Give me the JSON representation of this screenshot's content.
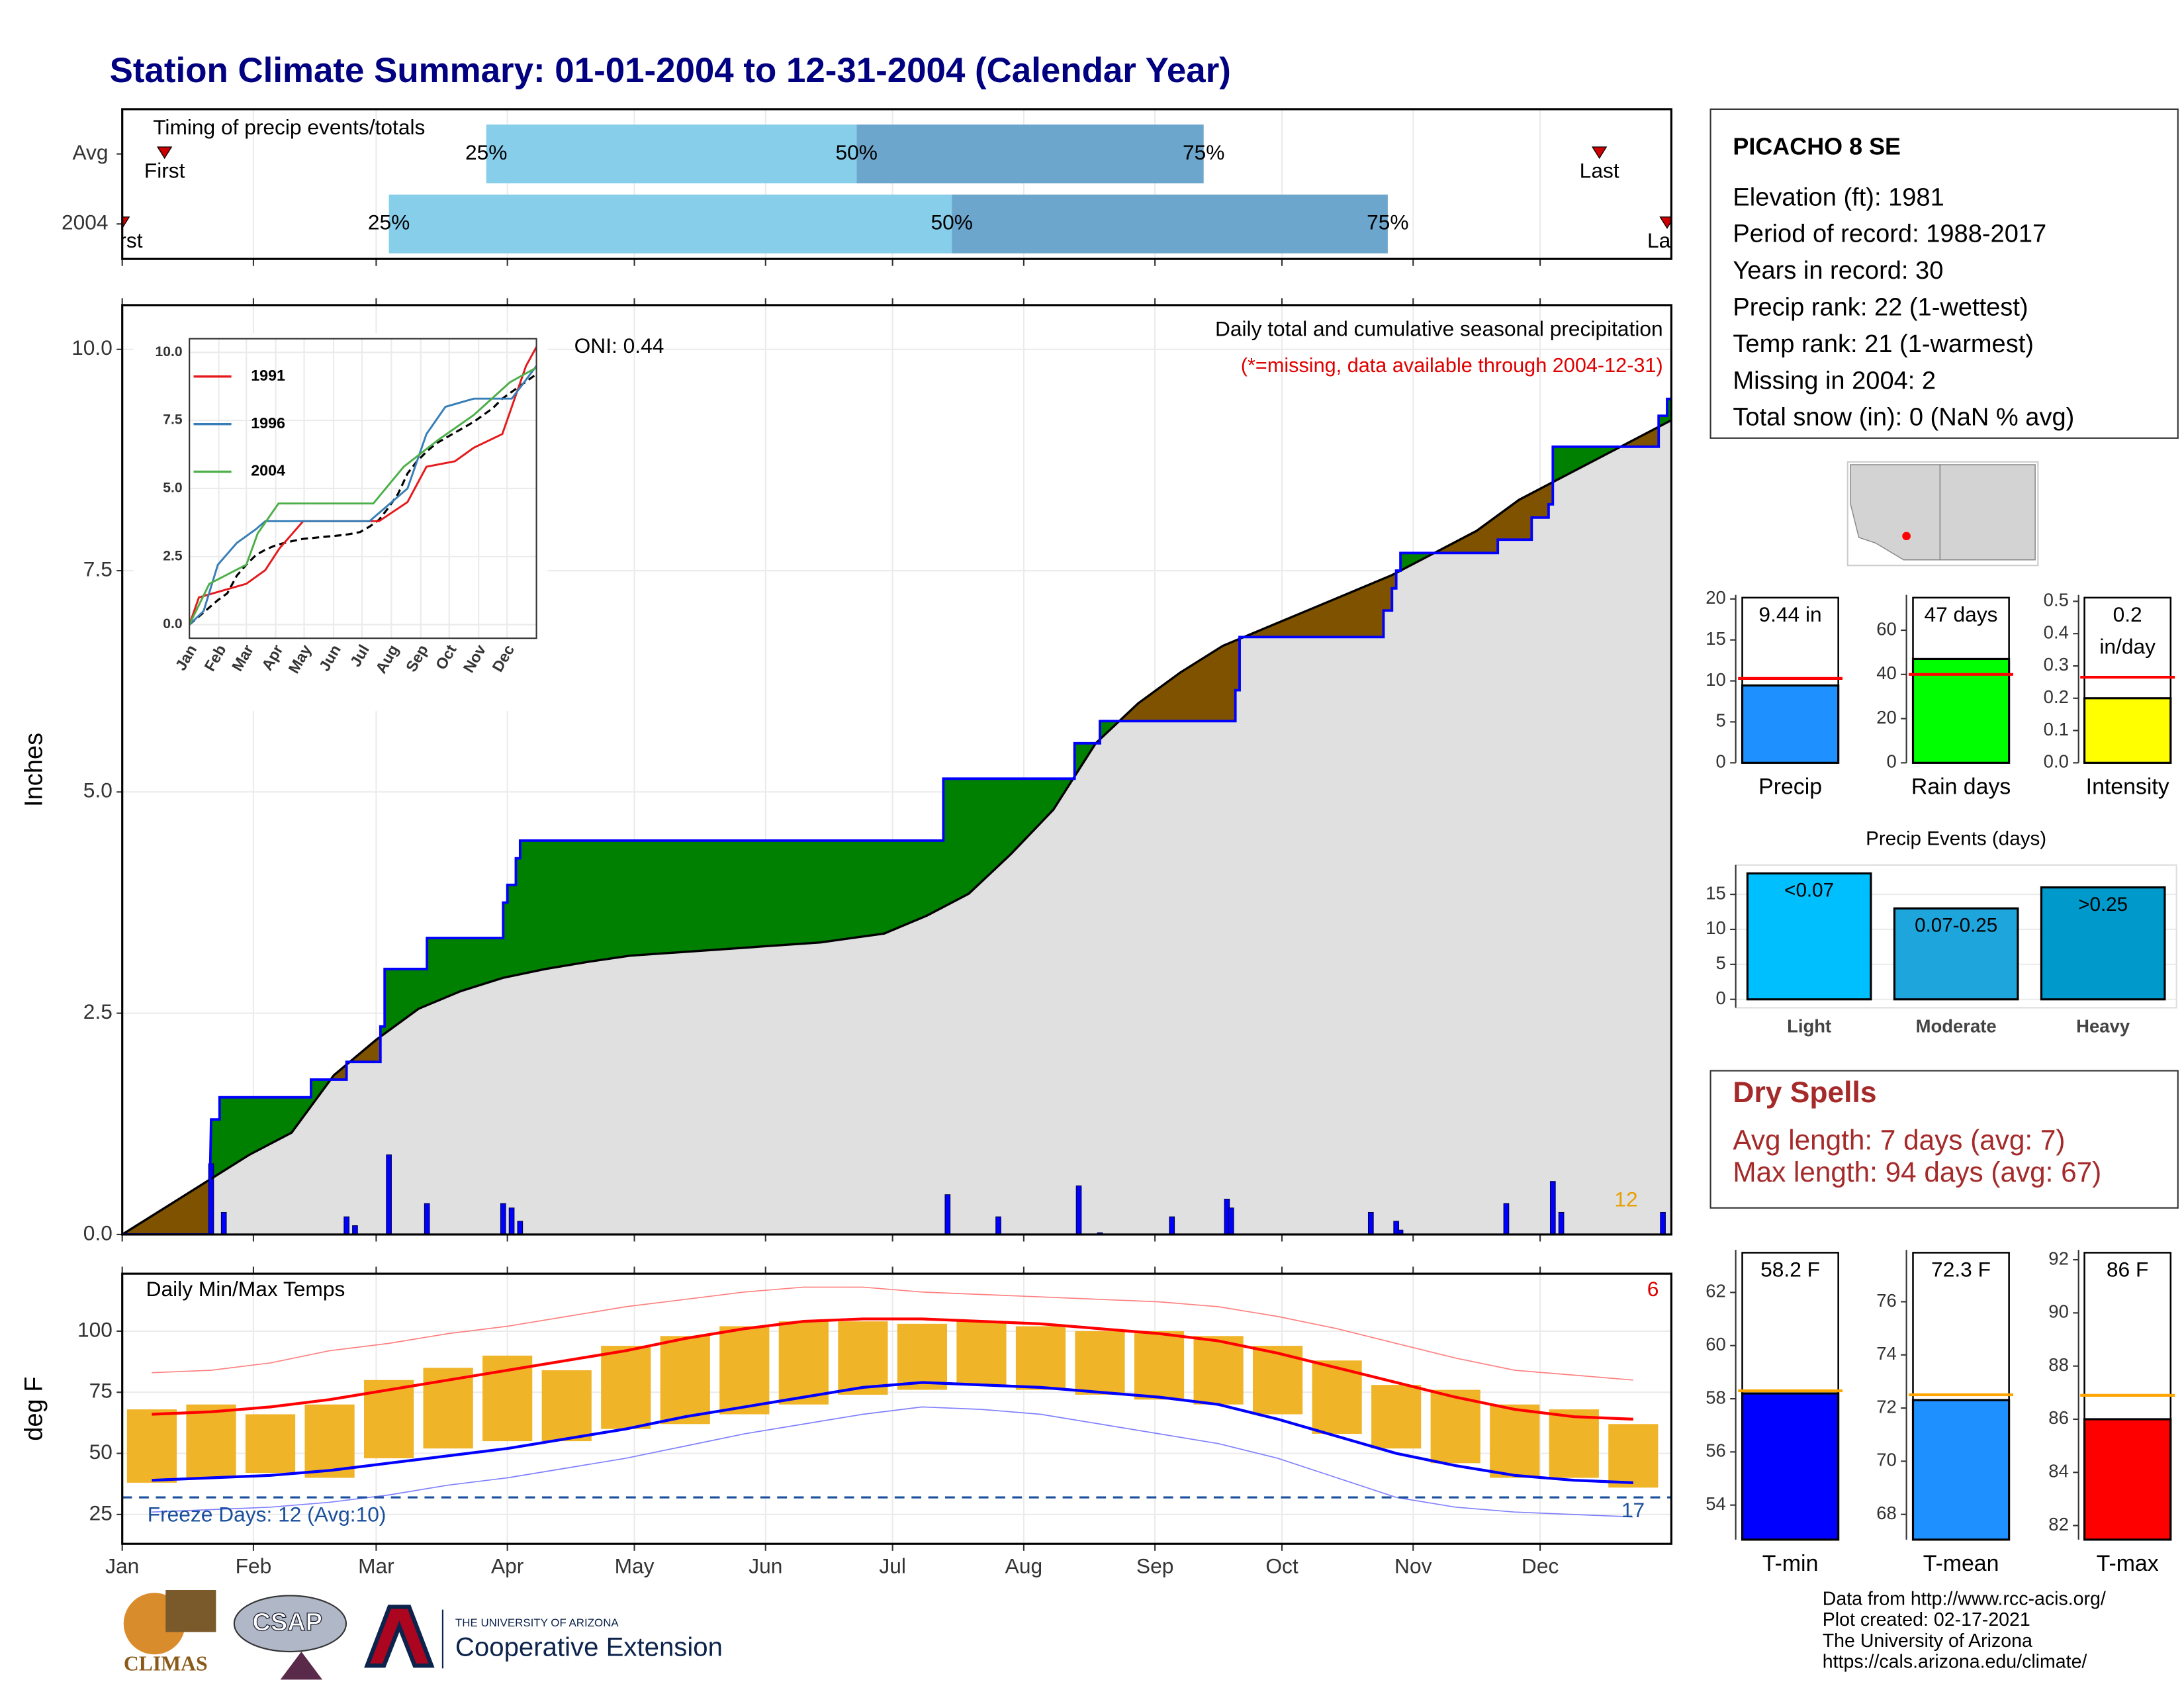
{
  "title": "Station Climate Summary: 01-01-2004 to 12-31-2004 (Calendar Year)",
  "chart_data": [
    {
      "type": "timing",
      "title": "Timing of precip events/totals",
      "xlim": [
        0,
        366
      ],
      "xticks": [
        0,
        31,
        60,
        91,
        121,
        152,
        182,
        213,
        244,
        274,
        305,
        335
      ],
      "grid": true,
      "light_color": "#87ceeb",
      "dark_color": "#6ca6cd",
      "marker_color": "#cc0000",
      "rows": [
        {
          "name": "Avg",
          "first": 10,
          "last": 349,
          "quartiles": [
            86,
            173.5,
            255.5
          ],
          "quartile_labels": [
            "25%",
            "50%",
            "75%"
          ],
          "first_label": "First",
          "last_label": "Last"
        },
        {
          "name": "2004",
          "first": 0,
          "last": 365,
          "quartiles": [
            63,
            196,
            299
          ],
          "quartile_labels": [
            "25%",
            "50%",
            "75%"
          ],
          "first_label": "First",
          "last_label": "Last"
        }
      ]
    },
    {
      "type": "cumulative",
      "ylabel": "Inches",
      "oni_label": "ONI: 0.44",
      "subtitle": "Daily total and cumulative seasonal precipitation",
      "note": "(*=missing, data available through 2004-12-31)",
      "count": 12,
      "count_color": "#e69f00",
      "note_color": "#e00000",
      "xlim": [
        0,
        366
      ],
      "ylim": [
        0,
        10.5
      ],
      "xticks": [
        0,
        31,
        60,
        91,
        121,
        152,
        182,
        213,
        244,
        274,
        305,
        335
      ],
      "yticks": [
        {
          "value": 0,
          "label": "0.0"
        },
        2.5,
        {
          "value": 5,
          "label": "5.0"
        },
        7.5,
        {
          "value": 10,
          "label": "10.0"
        }
      ],
      "grid": true,
      "above_color": "#008000",
      "below_color": "#7f5200",
      "normal_fill": "#e0e0e0",
      "series": [
        {
          "color": "#0000ff",
          "x": [
            0,
            20.8,
            20.8,
            21,
            23,
            23,
            44.6,
            44.6,
            53,
            53,
            61,
            61,
            62,
            62,
            72,
            72,
            90,
            90,
            91,
            91,
            93,
            93,
            94,
            94,
            194,
            194,
            225,
            225,
            231,
            231,
            263,
            263,
            264,
            264,
            298,
            298,
            300,
            300,
            301,
            301,
            302,
            302,
            325,
            325,
            333,
            333,
            337,
            337,
            338,
            338,
            363,
            363,
            365,
            365,
            366
          ],
          "values": [
            0,
            0,
            0.8,
            1.3,
            1.3,
            1.55,
            1.55,
            1.75,
            1.75,
            1.95,
            1.95,
            2.35,
            2.35,
            3.0,
            3.0,
            3.35,
            3.35,
            3.75,
            3.75,
            3.95,
            3.95,
            4.25,
            4.25,
            4.45,
            4.45,
            5.15,
            5.15,
            5.55,
            5.55,
            5.8,
            5.8,
            6.15,
            6.15,
            6.75,
            6.75,
            7.05,
            7.05,
            7.3,
            7.3,
            7.5,
            7.5,
            7.7,
            7.7,
            7.85,
            7.85,
            8.1,
            8.1,
            8.25,
            8.25,
            8.9,
            8.9,
            9.25,
            9.25,
            9.44,
            9.44
          ]
        },
        {
          "color": "#000000",
          "x": [
            0,
            10,
            20,
            30,
            40,
            50,
            60,
            70,
            80,
            90,
            100,
            110,
            120,
            135,
            150,
            165,
            180,
            190,
            200,
            210,
            220,
            230,
            240,
            250,
            260,
            270,
            280,
            290,
            300,
            310,
            320,
            330,
            340,
            350,
            360,
            366
          ],
          "values": [
            0,
            0.3,
            0.6,
            0.9,
            1.15,
            1.8,
            2.2,
            2.55,
            2.75,
            2.9,
            3.0,
            3.08,
            3.15,
            3.2,
            3.25,
            3.3,
            3.4,
            3.6,
            3.85,
            4.3,
            4.8,
            5.55,
            6.0,
            6.35,
            6.65,
            6.85,
            7.05,
            7.25,
            7.45,
            7.7,
            7.95,
            8.3,
            8.55,
            8.8,
            9.05,
            9.2
          ]
        }
      ],
      "daily": {
        "color": "#0000ff",
        "x": [
          21,
          24,
          53,
          55,
          63,
          72,
          90,
          92,
          94,
          195,
          207,
          226,
          231,
          248,
          261,
          262,
          295,
          301,
          302,
          327,
          338,
          340,
          364
        ],
        "values": [
          0.8,
          0.25,
          0.2,
          0.1,
          0.9,
          0.35,
          0.35,
          0.3,
          0.15,
          0.45,
          0.2,
          0.55,
          0.02,
          0.2,
          0.4,
          0.3,
          0.25,
          0.15,
          0.05,
          0.35,
          0.6,
          0.25,
          0.25
        ]
      }
    },
    {
      "type": "inset",
      "xlim": [
        0,
        366
      ],
      "ylim": [
        -0.5,
        10.5
      ],
      "xticks": [
        {
          "value": 0,
          "label": "Jan"
        },
        {
          "value": 31,
          "label": "Feb"
        },
        {
          "value": 60,
          "label": "Mar"
        },
        {
          "value": 91,
          "label": "Apr"
        },
        {
          "value": 121,
          "label": "May"
        },
        {
          "value": 152,
          "label": "Jun"
        },
        {
          "value": 182,
          "label": "Jul"
        },
        {
          "value": 213,
          "label": "Aug"
        },
        {
          "value": 244,
          "label": "Sep"
        },
        {
          "value": 274,
          "label": "Oct"
        },
        {
          "value": 305,
          "label": "Nov"
        },
        {
          "value": 335,
          "label": "Dec"
        }
      ],
      "yticks": [
        {
          "value": 0,
          "label": "0.0"
        },
        2.5,
        {
          "value": 5,
          "label": "5.0"
        },
        7.5,
        {
          "value": 10,
          "label": "10.0"
        }
      ],
      "grid": true,
      "series": [
        {
          "name": "1991",
          "color": "#e41a1c",
          "x": [
            0,
            10,
            60,
            80,
            95,
            120,
            200,
            230,
            250,
            280,
            300,
            330,
            345,
            355,
            366
          ],
          "values": [
            0,
            1,
            1.5,
            2,
            2.8,
            3.8,
            3.8,
            4.5,
            5.8,
            6,
            6.5,
            7,
            8.5,
            9.5,
            10.2
          ]
        },
        {
          "name": "1996",
          "color": "#377eb8",
          "x": [
            0,
            15,
            30,
            50,
            70,
            80,
            190,
            230,
            250,
            270,
            300,
            340,
            366
          ],
          "values": [
            0,
            0.5,
            2.2,
            3.0,
            3.5,
            3.8,
            3.8,
            5.0,
            7.0,
            8.0,
            8.3,
            8.3,
            9.5
          ]
        },
        {
          "name": "2004",
          "color": "#4daf4a",
          "x": [
            0,
            21,
            60,
            72,
            94,
            194,
            226,
            263,
            300,
            338,
            366
          ],
          "values": [
            0,
            1.5,
            2.2,
            3.35,
            4.45,
            4.45,
            5.8,
            6.8,
            7.7,
            8.9,
            9.44
          ]
        }
      ]
    },
    {
      "type": "temperature",
      "ylabel": "deg F",
      "title": "Daily Min/Max Temps",
      "count_high": 6,
      "freeze_label": "Freeze Days: 12 (Avg:10)",
      "count_low": 17,
      "xlim": [
        0,
        366
      ],
      "ylim": [
        13,
        123.5
      ],
      "xticks": [
        {
          "value": 0,
          "label": "Jan"
        },
        {
          "value": 31,
          "label": "Feb"
        },
        {
          "value": 60,
          "label": "Mar"
        },
        {
          "value": 91,
          "label": "Apr"
        },
        {
          "value": 121,
          "label": "May"
        },
        {
          "value": 152,
          "label": "Jun"
        },
        {
          "value": 182,
          "label": "Jul"
        },
        {
          "value": 213,
          "label": "Aug"
        },
        {
          "value": 244,
          "label": "Sep"
        },
        {
          "value": 274,
          "label": "Oct"
        },
        {
          "value": 305,
          "label": "Nov"
        },
        {
          "value": 335,
          "label": "Dec"
        }
      ],
      "yticks": [
        25,
        50,
        75,
        100
      ],
      "grid": true,
      "freeze_line": 32,
      "freeze_color": "#1a4f9c",
      "x": [
        7,
        21,
        35,
        49,
        63,
        77,
        91,
        105,
        119,
        133,
        147,
        161,
        175,
        189,
        203,
        217,
        231,
        245,
        259,
        273,
        287,
        301,
        315,
        329,
        343,
        357
      ],
      "range_bars": {
        "color": "#f0b429",
        "max": [
          68,
          70,
          66,
          70,
          80,
          85,
          90,
          84,
          94,
          98,
          102,
          104,
          104,
          103,
          104,
          102,
          100,
          100,
          98,
          94,
          88,
          78,
          76,
          70,
          68,
          62
        ],
        "min": [
          38,
          40,
          42,
          40,
          48,
          52,
          55,
          55,
          60,
          62,
          66,
          70,
          74,
          76,
          78,
          76,
          74,
          72,
          70,
          66,
          58,
          52,
          46,
          40,
          40,
          36
        ]
      },
      "lines": [
        {
          "color": "#ff8080",
          "width": 0.8,
          "values": [
            83,
            84,
            87,
            92,
            95,
            99,
            102,
            106,
            110,
            113,
            116,
            118,
            118,
            116,
            115,
            114,
            113,
            112,
            110,
            106,
            101,
            95,
            89,
            84,
            82,
            80
          ]
        },
        {
          "color": "#8080ff",
          "width": 0.8,
          "values": [
            26,
            27,
            28,
            30,
            33,
            37,
            40,
            44,
            48,
            53,
            58,
            62,
            66,
            69,
            68,
            66,
            62,
            58,
            54,
            48,
            40,
            32,
            28,
            26,
            25,
            24
          ]
        },
        {
          "color": "#ff0000",
          "width": 2,
          "values": [
            66,
            67,
            69,
            72,
            76,
            80,
            84,
            88,
            92,
            97,
            101,
            104,
            105,
            105,
            104,
            103,
            101,
            99,
            96,
            91,
            85,
            79,
            73,
            68,
            65,
            64
          ]
        },
        {
          "color": "#0000ff",
          "width": 2,
          "values": [
            39,
            40,
            41,
            43,
            46,
            49,
            52,
            56,
            60,
            65,
            69,
            73,
            77,
            79,
            78,
            77,
            75,
            73,
            70,
            64,
            57,
            50,
            45,
            41,
            39,
            38
          ]
        }
      ]
    },
    {
      "type": "bar",
      "categories": [
        "Precip"
      ],
      "values": [
        9.44
      ],
      "value_labels": [
        "9.44 in"
      ],
      "color": "#1e90ff",
      "average": 10.3,
      "average_color": "#ff0000",
      "ylim": [
        0,
        20.5
      ],
      "yticks": [
        0,
        5,
        10,
        15,
        20
      ]
    },
    {
      "type": "bar",
      "categories": [
        "Rain days"
      ],
      "values": [
        47
      ],
      "value_labels": [
        "47 days"
      ],
      "color": "#00ff00",
      "average": 40,
      "average_color": "#ff0000",
      "ylim": [
        0,
        76
      ],
      "yticks": [
        0,
        20,
        40,
        60
      ]
    },
    {
      "type": "bar",
      "categories": [
        "Intensity"
      ],
      "values": [
        0.2
      ],
      "value_labels": [
        "0.2 in/day"
      ],
      "color": "#ffff00",
      "average": 0.265,
      "average_color": "#ff0000",
      "ylim": [
        0,
        0.52
      ],
      "yticks": [
        {
          "value": 0,
          "label": "0.0"
        },
        0.1,
        0.2,
        0.3,
        0.4,
        0.5
      ]
    },
    {
      "type": "bar",
      "title": "Precip Events (days)",
      "categories": [
        "Light",
        "Moderate",
        "Heavy"
      ],
      "values": [
        18,
        13,
        16
      ],
      "bar_labels": [
        "<0.07",
        "0.07-0.25",
        ">0.25"
      ],
      "colors": [
        "#00bfff",
        "#1ea5dc",
        "#0099cc"
      ],
      "ylim": [
        -1.2,
        19.2
      ],
      "yticks": [
        0,
        5,
        10,
        15
      ],
      "grid": true
    },
    {
      "type": "bar",
      "categories": [
        "T-min"
      ],
      "values": [
        58.2
      ],
      "value_labels": [
        "58.2 F"
      ],
      "color": "#0000ff",
      "average": 58.3,
      "average_color": "#ffa500",
      "ylim": [
        52.7,
        63.6
      ],
      "yticks": [
        54,
        56,
        58,
        60,
        62
      ]
    },
    {
      "type": "bar",
      "categories": [
        "T-mean"
      ],
      "values": [
        72.3
      ],
      "value_labels": [
        "72.3 F"
      ],
      "color": "#1e90ff",
      "average": 72.5,
      "average_color": "#ffa500",
      "ylim": [
        67.05,
        77.95
      ],
      "yticks": [
        68,
        70,
        72,
        74,
        76
      ]
    },
    {
      "type": "bar",
      "categories": [
        "T-max"
      ],
      "values": [
        86
      ],
      "value_labels": [
        "86 F"
      ],
      "color": "#ff0000",
      "average": 86.9,
      "average_color": "#ffa500",
      "ylim": [
        81.47,
        92.37
      ],
      "yticks": [
        82,
        84,
        86,
        88,
        90,
        92
      ]
    }
  ],
  "station": {
    "name": "PICACHO 8 SE",
    "lines": [
      "Elevation (ft): 1981",
      "Period of record: 1988-2017",
      "Years in record: 30",
      "Precip rank: 22 (1-wettest)",
      "Temp rank: 21 (1-warmest)",
      "Missing in 2004: 2",
      "Total snow (in): 0 (NaN % avg)"
    ]
  },
  "dry_spells": {
    "title": "Dry Spells",
    "lines": [
      "Avg length: 7 days (avg: 7)",
      "Max length: 94 days (avg: 67)"
    ]
  },
  "footer": {
    "credits": [
      "Data from http://www.rcc-acis.org/",
      "Plot created: 02-17-2021",
      "The University of Arizona",
      "https://cals.arizona.edu/climate/"
    ],
    "logos": [
      "CLIMAS",
      "CSAP",
      "THE UNIVERSITY OF ARIZONA",
      "Cooperative Extension"
    ]
  }
}
